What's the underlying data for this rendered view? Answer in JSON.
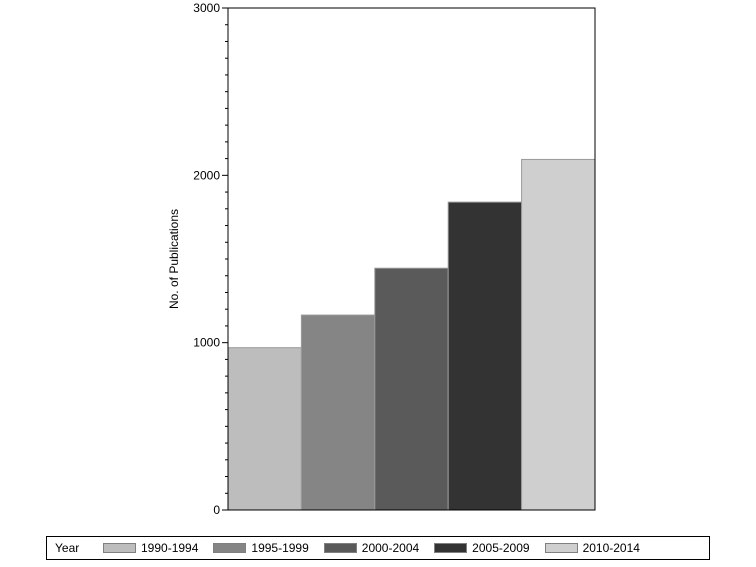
{
  "chart_data": {
    "type": "bar",
    "title": "",
    "xlabel": "",
    "ylabel": "No. of Publications",
    "ylim": [
      0,
      3000
    ],
    "yticks": [
      0,
      1000,
      2000,
      3000
    ],
    "categories": [
      "1990-1994",
      "1995-1999",
      "2000-2004",
      "2005-2009",
      "2010-2014"
    ],
    "values": [
      970,
      1165,
      1445,
      1840,
      2095
    ],
    "colors": [
      "#bdbdbd",
      "#858585",
      "#5a5a5a",
      "#333333",
      "#cfcfcf"
    ],
    "legend": {
      "title": "Year",
      "placement": "bottom"
    },
    "grid": false
  }
}
